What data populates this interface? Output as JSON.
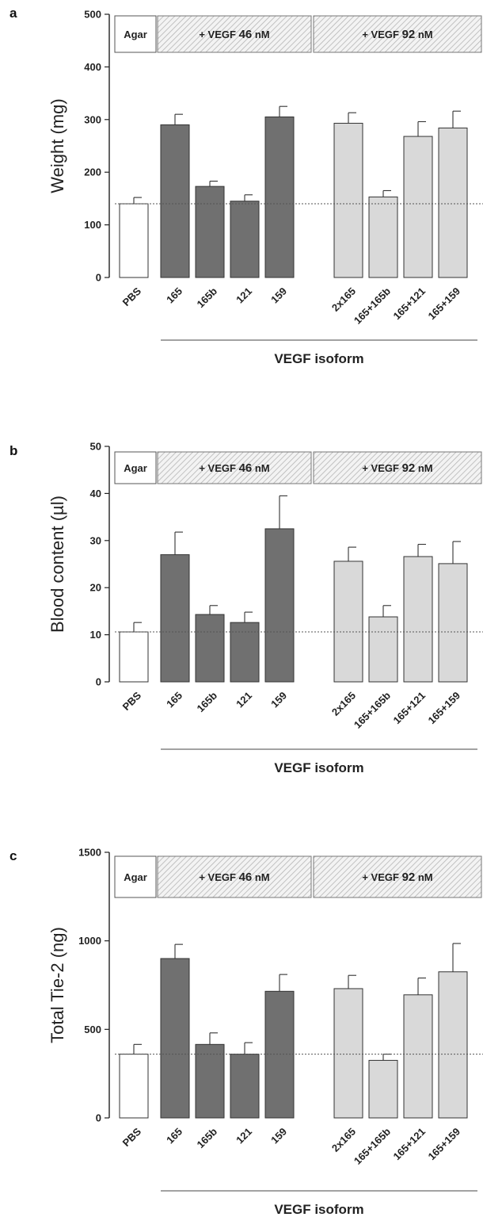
{
  "colors": {
    "control": "#ffffff",
    "vegf46": "#707070",
    "vegf92": "#d9d9d9",
    "stroke": "#333333",
    "hatch": "#bdbdbd"
  },
  "chart_data": [
    {
      "type": "bar",
      "panel": "a",
      "ylabel": "Weight (mg)",
      "xlabel": "VEGF isoform",
      "ylim": [
        0,
        500
      ],
      "yticks": [
        0,
        100,
        200,
        300,
        400,
        500
      ],
      "categories": [
        "PBS",
        "165",
        "165b",
        "121",
        "159",
        "2x165",
        "165+165b",
        "165+121",
        "165+159"
      ],
      "groups": [
        "control",
        "vegf46",
        "vegf46",
        "vegf46",
        "vegf46",
        "vegf92",
        "vegf92",
        "vegf92",
        "vegf92"
      ],
      "values": [
        140,
        290,
        173,
        145,
        305,
        293,
        153,
        268,
        284
      ],
      "errors": [
        12,
        20,
        10,
        12,
        20,
        20,
        12,
        28,
        32
      ],
      "baseline": 140,
      "headers": {
        "agar": "Agar",
        "vegf46_prefix": "+ VEGF",
        "vegf46_value": "46",
        "vegf46_unit": "nM",
        "vegf92_prefix": "+ VEGF",
        "vegf92_value": "92",
        "vegf92_unit": "nM"
      }
    },
    {
      "type": "bar",
      "panel": "b",
      "ylabel": "Blood content (µl)",
      "xlabel": "VEGF isoform",
      "ylim": [
        0,
        50
      ],
      "yticks": [
        0,
        10,
        20,
        30,
        40,
        50
      ],
      "categories": [
        "PBS",
        "165",
        "165b",
        "121",
        "159",
        "2x165",
        "165+165b",
        "165+121",
        "165+159"
      ],
      "groups": [
        "control",
        "vegf46",
        "vegf46",
        "vegf46",
        "vegf46",
        "vegf92",
        "vegf92",
        "vegf92",
        "vegf92"
      ],
      "values": [
        10.6,
        27,
        14.3,
        12.6,
        32.5,
        25.6,
        13.8,
        26.6,
        25.1
      ],
      "errors": [
        2,
        4.8,
        1.9,
        2.2,
        7,
        3,
        2.4,
        2.6,
        4.7
      ],
      "baseline": 10.6,
      "headers": {
        "agar": "Agar",
        "vegf46_prefix": "+ VEGF",
        "vegf46_value": "46",
        "vegf46_unit": "nM",
        "vegf92_prefix": "+ VEGF",
        "vegf92_value": "92",
        "vegf92_unit": "nM"
      }
    },
    {
      "type": "bar",
      "panel": "c",
      "ylabel": "Total Tie-2 (ng)",
      "xlabel": "VEGF isoform",
      "ylim": [
        0,
        1500
      ],
      "yticks": [
        0,
        500,
        1000,
        1500
      ],
      "categories": [
        "PBS",
        "165",
        "165b",
        "121",
        "159",
        "2x165",
        "165+165b",
        "165+121",
        "165+159"
      ],
      "groups": [
        "control",
        "vegf46",
        "vegf46",
        "vegf46",
        "vegf46",
        "vegf92",
        "vegf92",
        "vegf92",
        "vegf92"
      ],
      "values": [
        360,
        900,
        415,
        360,
        715,
        730,
        325,
        695,
        825
      ],
      "errors": [
        55,
        80,
        65,
        65,
        95,
        75,
        35,
        95,
        160
      ],
      "baseline": 360,
      "headers": {
        "agar": "Agar",
        "vegf46_prefix": "+ VEGF",
        "vegf46_value": "46",
        "vegf46_unit": "nM",
        "vegf92_prefix": "+ VEGF",
        "vegf92_value": "92",
        "vegf92_unit": "nM"
      }
    }
  ]
}
